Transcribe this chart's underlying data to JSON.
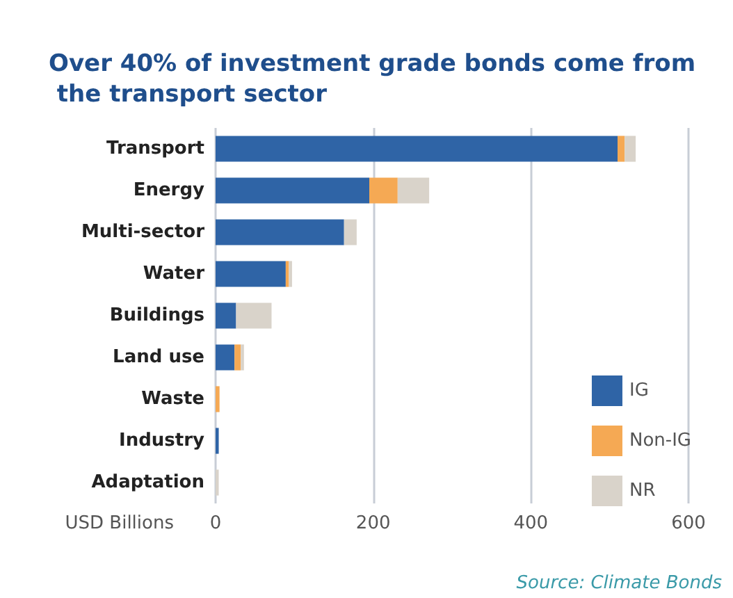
{
  "chart_data": {
    "type": "bar",
    "orientation": "horizontal",
    "stacked": true,
    "title": "Over 40% of investment grade bonds come from the transport sector",
    "xlabel": "USD Billions",
    "annotations": [
      "Source: Climate Bonds"
    ],
    "categories": [
      "Transport",
      "Energy",
      "Multi-sector",
      "Water",
      "Buildings",
      "Land use",
      "Waste",
      "Industry",
      "Adaptation"
    ],
    "series": [
      {
        "name": "IG",
        "color": "#2f64a6",
        "values": [
          510,
          195,
          163,
          89,
          26,
          24,
          0,
          4,
          0
        ]
      },
      {
        "name": "Non-IG",
        "color": "#f5a954",
        "values": [
          9,
          36,
          0,
          4,
          0,
          8,
          5,
          0,
          0
        ]
      },
      {
        "name": "NR",
        "color": "#d9d3ca",
        "values": [
          14,
          40,
          16,
          4,
          45,
          4,
          0,
          0,
          4
        ]
      }
    ],
    "xlim": [
      0,
      600
    ],
    "xticks": [
      0,
      200,
      400,
      600
    ],
    "grid": "x",
    "legend": "right"
  }
}
